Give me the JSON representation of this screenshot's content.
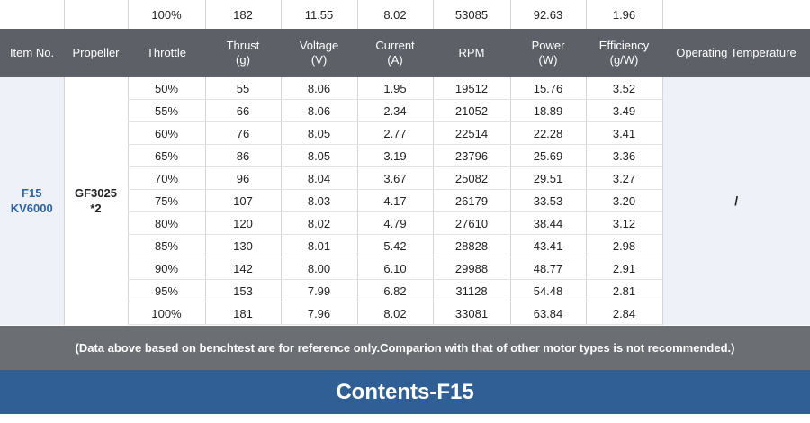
{
  "top_row": [
    "",
    "",
    "100%",
    "182",
    "11.55",
    "8.02",
    "53085",
    "92.63",
    "1.96",
    ""
  ],
  "headers": [
    {
      "l1": "Item No.",
      "l2": ""
    },
    {
      "l1": "Propeller",
      "l2": ""
    },
    {
      "l1": "Throttle",
      "l2": ""
    },
    {
      "l1": "Thrust",
      "l2": "(g)"
    },
    {
      "l1": "Voltage",
      "l2": "(V)"
    },
    {
      "l1": "Current",
      "l2": "(A)"
    },
    {
      "l1": "RPM",
      "l2": ""
    },
    {
      "l1": "Power",
      "l2": "(W)"
    },
    {
      "l1": "Efficiency",
      "l2": "(g/W)"
    },
    {
      "l1": "Operating Temperature",
      "l2": ""
    }
  ],
  "item": {
    "line1": "F15",
    "line2": "KV6000"
  },
  "propeller": {
    "line1": "GF3025",
    "line2": "*2"
  },
  "operating_temperature": "/",
  "rows": [
    [
      "50%",
      "55",
      "8.06",
      "1.95",
      "19512",
      "15.76",
      "3.52"
    ],
    [
      "55%",
      "66",
      "8.06",
      "2.34",
      "21052",
      "18.89",
      "3.49"
    ],
    [
      "60%",
      "76",
      "8.05",
      "2.77",
      "22514",
      "22.28",
      "3.41"
    ],
    [
      "65%",
      "86",
      "8.05",
      "3.19",
      "23796",
      "25.69",
      "3.36"
    ],
    [
      "70%",
      "96",
      "8.04",
      "3.67",
      "25082",
      "29.51",
      "3.27"
    ],
    [
      "75%",
      "107",
      "8.03",
      "4.17",
      "26179",
      "33.53",
      "3.20"
    ],
    [
      "80%",
      "120",
      "8.02",
      "4.79",
      "27610",
      "38.44",
      "3.12"
    ],
    [
      "85%",
      "130",
      "8.01",
      "5.42",
      "28828",
      "43.41",
      "2.98"
    ],
    [
      "90%",
      "142",
      "8.00",
      "6.10",
      "29988",
      "48.77",
      "2.91"
    ],
    [
      "95%",
      "153",
      "7.99",
      "6.82",
      "31128",
      "54.48",
      "2.81"
    ],
    [
      "100%",
      "181",
      "7.96",
      "8.02",
      "33081",
      "63.84",
      "2.84"
    ]
  ],
  "note": "(Data above based on benchtest are for reference only.Comparion with that of other motor types is not recommended.)",
  "footer_title": "Contents-F15"
}
